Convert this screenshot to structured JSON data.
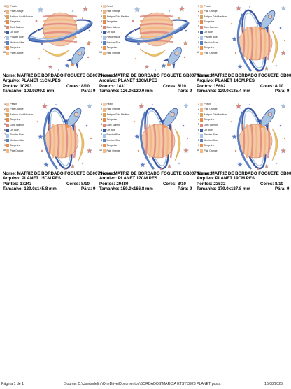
{
  "legend": {
    "numbers": [
      "1",
      "2",
      "3",
      "4",
      "5",
      "6",
      "7",
      "8",
      "9",
      "10"
    ],
    "names": [
      "Peach",
      "Pale Orange",
      "Antique Gold Medium",
      "Tangerine",
      "Dark Salmon",
      "Ort Blue",
      "Powder Blue",
      "Medium Blue",
      "Tangerine",
      "Pale Orange"
    ],
    "colors": [
      "#f4c9a8",
      "#f2b47c",
      "#d7a35a",
      "#e8894a",
      "#e1877a",
      "#3b5aa6",
      "#a9c3e2",
      "#5b7fc4",
      "#ee8f4c",
      "#f5b981"
    ]
  },
  "labels": {
    "nome": "Nome:",
    "arquivo": "Arquivo:",
    "pontos": "Pontos:",
    "tamanho": "Tamanho:",
    "cores": "Cores:",
    "para": "Pára:"
  },
  "designs": [
    {
      "nome": "MATRIZ DE BORDADO FOGUETE GB007 Nome:",
      "arquivo": "PLANET 11CM.PES",
      "pontos": "10293",
      "tamanho": "103.9x99.0 mm",
      "cores": "8/10",
      "para": "9",
      "variant": "ring"
    },
    {
      "nome": "MATRIZ DE BORDADO FOGUETE GB007 Nome:",
      "arquivo": "PLANET 13CM.PES",
      "pontos": "14311",
      "tamanho": "126.0x120.0 mm",
      "cores": "8/10",
      "para": "9",
      "variant": "ring"
    },
    {
      "nome": "MATRIZ DE BORDADO FOGUETE GB00",
      "arquivo": "PLANET 14CM.PES",
      "pontos": "15692",
      "tamanho": "129.0x135.4 mm",
      "cores": "8/10",
      "para": "9",
      "variant": "tall"
    },
    {
      "nome": "MATRIZ DE BORDADO FOGUETE GB007 Nome:",
      "arquivo": "PLANET 15CM.PES",
      "pontos": "17243",
      "tamanho": "139.0x145.8 mm",
      "cores": "8/10",
      "para": "9",
      "variant": "tall"
    },
    {
      "nome": "MATRIZ DE BORDADO FOGUETE GB007 Nome:",
      "arquivo": "PLANET 17CM.PES",
      "pontos": "20480",
      "tamanho": "159.0x166.8 mm",
      "cores": "8/10",
      "para": "9",
      "variant": "tall"
    },
    {
      "nome": "MATRIZ DE BORDADO FOGUETE GB00",
      "arquivo": "PLANET 19CM.PES",
      "pontos": "23532",
      "tamanho": "179.0x187.8 mm",
      "cores": "8/10",
      "para": "9",
      "variant": "tall"
    }
  ],
  "footer": {
    "page": "Página 1 de 1",
    "source": "Source:  C:\\Users\\delim\\OneDrive\\Documentos\\BORDADOS\\MARCIA ETSY\\3923  PLANET pasta",
    "date": "16/08/2025"
  }
}
